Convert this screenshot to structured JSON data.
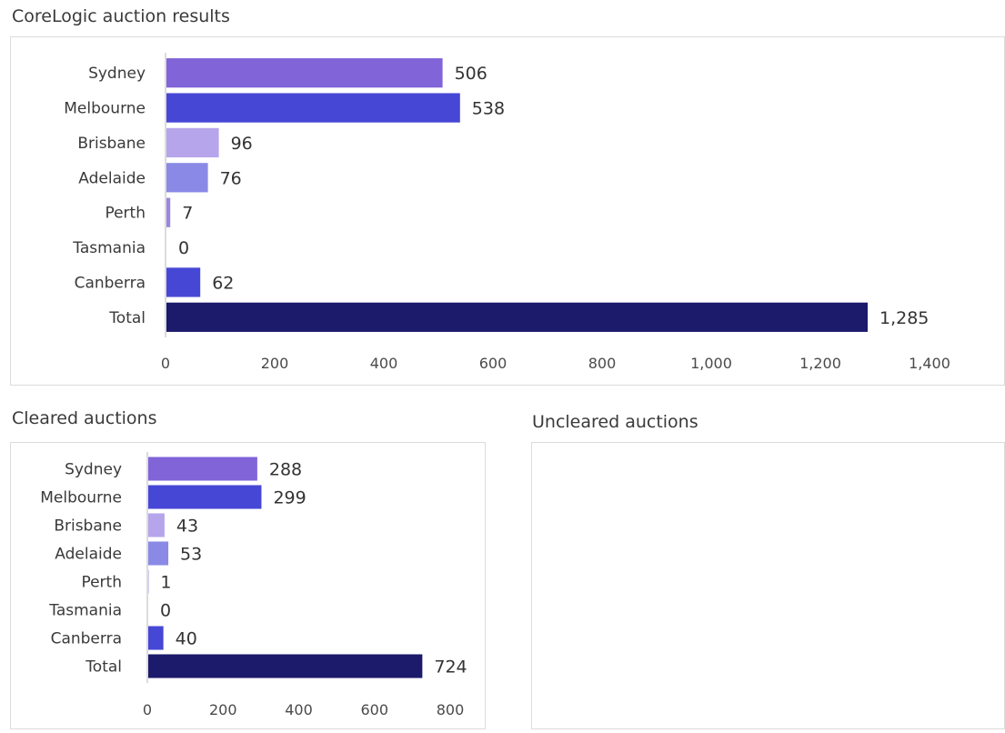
{
  "titles": {
    "main": "CoreLogic auction results",
    "cleared": "Cleared auctions",
    "uncleared": "Uncleared auctions"
  },
  "colors": {
    "Sydney": "#8064d8",
    "Melbourne": "#4747d6",
    "Brisbane": "#b6a5ea",
    "Adelaide": "#8a8ae6",
    "Perth": "#9a86dc",
    "Tasmania": "#9a86dc",
    "Canberra": "#4747d6",
    "Total": "#1b1a6b",
    "axis_line": "#d0d0d0"
  },
  "chart_data": [
    {
      "type": "bar",
      "orientation": "horizontal",
      "title": "CoreLogic auction results",
      "categories": [
        "Sydney",
        "Melbourne",
        "Brisbane",
        "Adelaide",
        "Perth",
        "Tasmania",
        "Canberra",
        "Total"
      ],
      "values": [
        506,
        538,
        96,
        76,
        7,
        0,
        62,
        1285
      ],
      "value_labels": [
        "506",
        "538",
        "96",
        "76",
        "7",
        "0",
        "62",
        "1,285"
      ],
      "xlim": [
        0,
        1400
      ],
      "ticks": [
        0,
        200,
        400,
        600,
        800,
        1000,
        1200,
        1400
      ],
      "tick_labels": [
        "0",
        "200",
        "400",
        "600",
        "800",
        "1,000",
        "1,200",
        "1,400"
      ]
    },
    {
      "type": "bar",
      "orientation": "horizontal",
      "title": "Cleared auctions",
      "categories": [
        "Sydney",
        "Melbourne",
        "Brisbane",
        "Adelaide",
        "Perth",
        "Tasmania",
        "Canberra",
        "Total"
      ],
      "values": [
        288,
        299,
        43,
        53,
        1,
        0,
        40,
        724
      ],
      "value_labels": [
        "288",
        "299",
        "43",
        "53",
        "1",
        "0",
        "40",
        "724"
      ],
      "xlim": [
        0,
        800
      ],
      "ticks": [
        0,
        200,
        400,
        600,
        800
      ],
      "tick_labels": [
        "0",
        "200",
        "400",
        "600",
        "800"
      ]
    }
  ]
}
